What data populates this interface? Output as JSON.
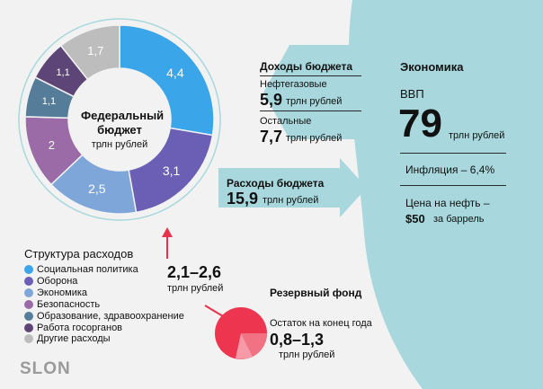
{
  "budget": {
    "center_title_line1": "Федеральный",
    "center_title_line2": "бюджет",
    "center_unit": "трлн рублей",
    "segments": [
      {
        "label": "4,4",
        "value": 4.4,
        "color": "#3aa5e8"
      },
      {
        "label": "3,1",
        "value": 3.1,
        "color": "#6a5fb5"
      },
      {
        "label": "2,5",
        "value": 2.5,
        "color": "#7ea6d8"
      },
      {
        "label": "2",
        "value": 2.0,
        "color": "#9b6ba8"
      },
      {
        "label": "1,1",
        "value": 1.1,
        "color": "#557d99"
      },
      {
        "label": "1,1",
        "value": 1.1,
        "color": "#5d4677"
      },
      {
        "label": "1,7",
        "value": 1.7,
        "color": "#bdbdbd"
      }
    ]
  },
  "legend": {
    "title": "Структура расходов",
    "items": [
      {
        "label": "Социальная политика",
        "color": "#3aa5e8"
      },
      {
        "label": "Оборона",
        "color": "#6a5fb5"
      },
      {
        "label": "Экономика",
        "color": "#7ea6d8"
      },
      {
        "label": "Безопасность",
        "color": "#9b6ba8"
      },
      {
        "label": "Образование, здравоохранение",
        "color": "#557d99"
      },
      {
        "label": "Работа госорганов",
        "color": "#5d4677"
      },
      {
        "label": "Другие расходы",
        "color": "#bdbdbd"
      }
    ]
  },
  "income": {
    "title": "Доходы бюджета",
    "oil_label": "Нефтегазовые",
    "oil_value": "5,9",
    "oil_unit": "трлн рублей",
    "other_label": "Остальные",
    "other_value": "7,7",
    "other_unit": "трлн рублей"
  },
  "expenses": {
    "title": "Расходы бюджета",
    "value": "15,9",
    "unit": "трлн рублей"
  },
  "deficit": {
    "value": "2,1–2,6",
    "unit": "трлн рублей"
  },
  "reserve": {
    "title": "Резервный фонд",
    "label": "Остаток на конец года",
    "value": "0,8–1,3",
    "unit": "трлн рублей"
  },
  "economy": {
    "title": "Экономика",
    "gdp_label": "ВВП",
    "gdp_value": "79",
    "gdp_unit": "трлн рублей",
    "inflation": "Инфляция – 6,4%",
    "oil_price_label": "Цена на нефть –",
    "oil_price_value": "$50",
    "oil_price_unit": "за баррель"
  },
  "brand": {
    "logo": "SLON"
  },
  "colors": {
    "teal": "#a8d8dd",
    "dark_panel": "#2b2b2b",
    "accent_red": "#e8314c"
  }
}
